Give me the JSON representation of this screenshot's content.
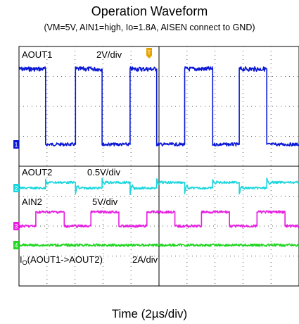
{
  "chart_data": {
    "type": "line",
    "title": "Operation Waveform",
    "subtitle": "(VM=5V, AIN1=high, Io=1.8A, AISEN connect to GND)",
    "xlabel": "Time (2µs/div)",
    "x_unit": "µs",
    "x_range": [
      0,
      20
    ],
    "grid": true,
    "trigger_marker": "T",
    "series": [
      {
        "name": "AOUT1",
        "scale": "2V/div",
        "channel": "1",
        "color": "#0a17d6",
        "unit": "V",
        "low": 0,
        "high": 5,
        "edges_us": [
          [
            0,
            "high"
          ],
          [
            1.9,
            "low"
          ],
          [
            4.0,
            "high"
          ],
          [
            5.9,
            "low"
          ],
          [
            7.9,
            "high"
          ],
          [
            9.8,
            "low"
          ],
          [
            11.8,
            "high"
          ],
          [
            13.8,
            "low"
          ],
          [
            15.7,
            "high"
          ],
          [
            17.7,
            "low"
          ]
        ]
      },
      {
        "name": "AOUT2",
        "scale": "0.5V/div",
        "channel": "2",
        "color": "#1ad6dd",
        "unit": "V",
        "low": 0,
        "high": 0.8,
        "edges_us": [
          [
            0,
            "low"
          ],
          [
            1.9,
            "high"
          ],
          [
            4.0,
            "low"
          ],
          [
            5.9,
            "high"
          ],
          [
            7.9,
            "low"
          ],
          [
            9.8,
            "high"
          ],
          [
            11.8,
            "low"
          ],
          [
            13.8,
            "high"
          ],
          [
            15.7,
            "low"
          ],
          [
            17.7,
            "high"
          ]
        ]
      },
      {
        "name": "AIN2",
        "scale": "5V/div",
        "channel": "3",
        "color": "#e61fe0",
        "unit": "V",
        "low": 0,
        "high": 5,
        "edges_us": [
          [
            0,
            "low"
          ],
          [
            1.2,
            "high"
          ],
          [
            3.2,
            "low"
          ],
          [
            5.1,
            "high"
          ],
          [
            7.1,
            "low"
          ],
          [
            9.1,
            "high"
          ],
          [
            11.1,
            "low"
          ],
          [
            13.0,
            "high"
          ],
          [
            15.0,
            "low"
          ],
          [
            17.0,
            "high"
          ],
          [
            19.0,
            "low"
          ]
        ]
      },
      {
        "name": "I_O(AOUT1->AOUT2)",
        "label_sub": "O",
        "label_rest": "(AOUT1->AOUT2)",
        "scale": "2A/div",
        "channel": "4",
        "color": "#22d622",
        "unit": "A",
        "low": 1.8,
        "high": 1.8,
        "edges_us": [
          [
            0,
            "high"
          ]
        ]
      }
    ]
  }
}
